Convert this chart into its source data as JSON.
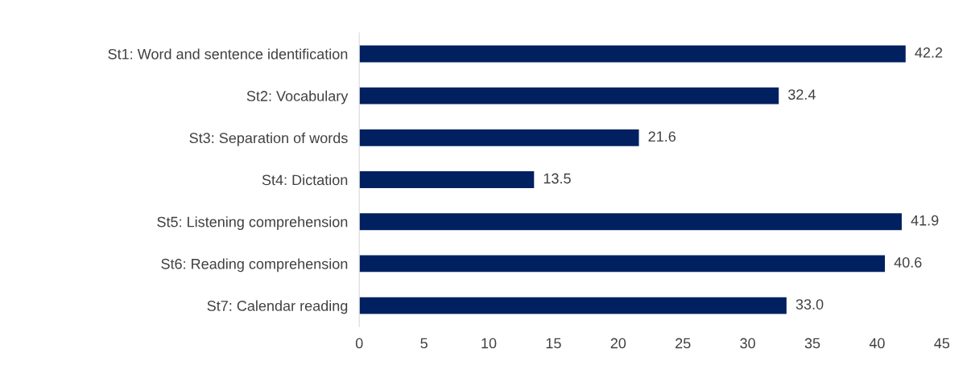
{
  "chart_data": {
    "type": "bar",
    "orientation": "horizontal",
    "categories": [
      "St1: Word and sentence identification",
      "St2: Vocabulary",
      "St3: Separation of words",
      "St4: Dictation",
      "St5: Listening comprehension",
      "St6: Reading comprehension",
      "St7: Calendar reading"
    ],
    "values": [
      42.2,
      32.4,
      21.6,
      13.5,
      41.9,
      40.6,
      33.0
    ],
    "value_labels": [
      "42.2",
      "32.4",
      "21.6",
      "13.5",
      "41.9",
      "40.6",
      "33.0"
    ],
    "color": "#002060",
    "xlim": [
      0,
      45
    ],
    "xticks": [
      0,
      5,
      10,
      15,
      20,
      25,
      30,
      35,
      40,
      45
    ],
    "grid": false,
    "legend": false
  }
}
